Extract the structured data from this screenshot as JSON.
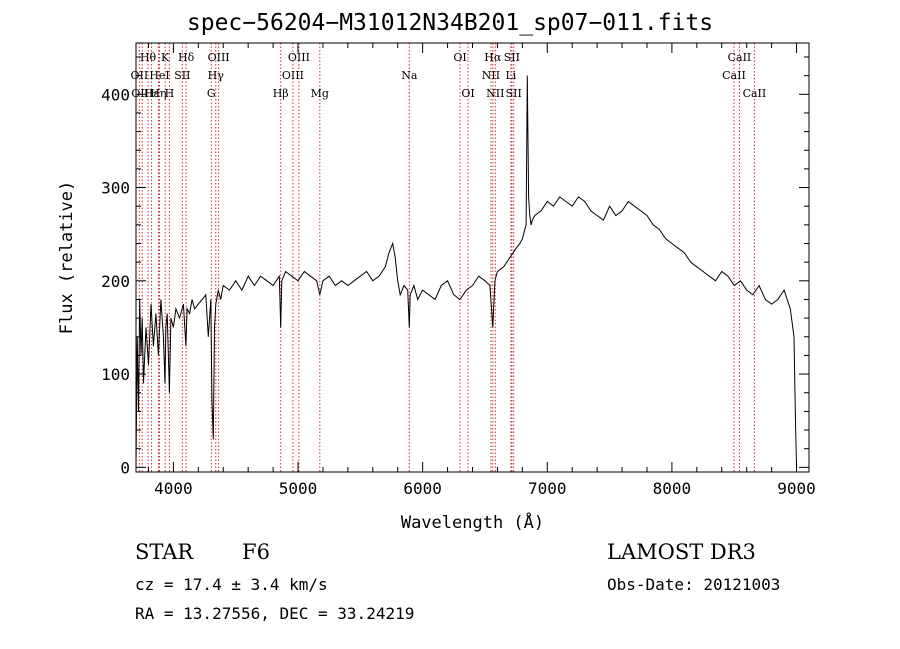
{
  "chart_data": {
    "type": "line",
    "title": "spec−56204−M31012N34B201_sp07−011.fits",
    "xlabel": "Wavelength (Å)",
    "ylabel": "Flux (relative)",
    "xlim": [
      3700,
      9100
    ],
    "ylim": [
      -5,
      455
    ],
    "xticks": [
      4000,
      5000,
      6000,
      7000,
      8000,
      9000
    ],
    "yticks": [
      0,
      100,
      200,
      300,
      400
    ],
    "series": [
      {
        "name": "spectrum",
        "x": [
          3700,
          3710,
          3720,
          3730,
          3740,
          3750,
          3760,
          3780,
          3800,
          3820,
          3840,
          3860,
          3880,
          3900,
          3920,
          3933,
          3940,
          3950,
          3968,
          3980,
          4000,
          4020,
          4050,
          4080,
          4100,
          4110,
          4130,
          4150,
          4170,
          4200,
          4230,
          4260,
          4280,
          4300,
          4310,
          4320,
          4330,
          4340,
          4360,
          4380,
          4400,
          4450,
          4500,
          4550,
          4600,
          4650,
          4700,
          4750,
          4800,
          4850,
          4861,
          4870,
          4900,
          4950,
          5000,
          5050,
          5100,
          5150,
          5175,
          5200,
          5250,
          5300,
          5350,
          5400,
          5450,
          5500,
          5550,
          5600,
          5650,
          5700,
          5730,
          5760,
          5780,
          5800,
          5820,
          5850,
          5880,
          5893,
          5900,
          5930,
          5960,
          6000,
          6050,
          6100,
          6150,
          6200,
          6250,
          6300,
          6350,
          6400,
          6450,
          6500,
          6540,
          6563,
          6580,
          6600,
          6650,
          6700,
          6750,
          6780,
          6800,
          6820,
          6830,
          6840,
          6850,
          6860,
          6870,
          6880,
          6900,
          6950,
          7000,
          7050,
          7100,
          7150,
          7200,
          7250,
          7300,
          7350,
          7400,
          7450,
          7500,
          7550,
          7600,
          7650,
          7700,
          7750,
          7800,
          7850,
          7900,
          7950,
          8000,
          8050,
          8100,
          8150,
          8200,
          8250,
          8300,
          8350,
          8400,
          8450,
          8500,
          8550,
          8600,
          8650,
          8700,
          8750,
          8800,
          8850,
          8900,
          8950,
          8980,
          8990,
          9000
        ],
        "y": [
          0,
          140,
          60,
          180,
          120,
          160,
          90,
          150,
          110,
          175,
          130,
          165,
          120,
          180,
          140,
          90,
          150,
          165,
          80,
          160,
          150,
          170,
          160,
          175,
          130,
          170,
          165,
          180,
          170,
          175,
          180,
          185,
          140,
          180,
          70,
          30,
          150,
          175,
          190,
          180,
          195,
          190,
          200,
          190,
          205,
          195,
          205,
          200,
          195,
          205,
          150,
          200,
          210,
          205,
          200,
          210,
          205,
          200,
          185,
          200,
          205,
          195,
          200,
          195,
          200,
          205,
          210,
          200,
          205,
          215,
          230,
          240,
          225,
          200,
          185,
          195,
          190,
          150,
          185,
          195,
          180,
          190,
          185,
          180,
          195,
          200,
          185,
          180,
          190,
          195,
          205,
          200,
          195,
          150,
          200,
          210,
          215,
          225,
          235,
          240,
          245,
          255,
          260,
          420,
          290,
          270,
          260,
          265,
          270,
          275,
          285,
          280,
          290,
          285,
          280,
          290,
          285,
          275,
          270,
          265,
          280,
          270,
          275,
          285,
          280,
          275,
          270,
          260,
          255,
          245,
          240,
          235,
          230,
          220,
          215,
          210,
          205,
          200,
          210,
          205,
          195,
          200,
          190,
          185,
          195,
          180,
          175,
          180,
          190,
          170,
          140,
          60,
          0
        ]
      }
    ],
    "lines": [
      {
        "name": "Hθ",
        "x": 3797,
        "row": 1
      },
      {
        "name": "OII",
        "x": 3727,
        "row": 2
      },
      {
        "name": "OIII",
        "x": 3750,
        "row": 3
      },
      {
        "name": "Hε",
        "x": 3825,
        "row": 3
      },
      {
        "name": "HeI",
        "x": 3889,
        "row": 2
      },
      {
        "name": "K",
        "x": 3934,
        "row": 1
      },
      {
        "name": "Hη",
        "x": 3880,
        "row": 3
      },
      {
        "name": "SII",
        "x": 4072,
        "row": 2
      },
      {
        "name": "H",
        "x": 3968,
        "row": 3
      },
      {
        "name": "Hδ",
        "x": 4102,
        "row": 1
      },
      {
        "name": "OIII",
        "x": 4363,
        "row": 1
      },
      {
        "name": "Hγ",
        "x": 4340,
        "row": 2
      },
      {
        "name": "G",
        "x": 4304,
        "row": 3
      },
      {
        "name": "Hβ",
        "x": 4861,
        "row": 3
      },
      {
        "name": "OIII",
        "x": 5007,
        "row": 1
      },
      {
        "name": "OIII",
        "x": 4959,
        "row": 2
      },
      {
        "name": "Mg",
        "x": 5175,
        "row": 3
      },
      {
        "name": "Na",
        "x": 5893,
        "row": 2
      },
      {
        "name": "OI",
        "x": 6300,
        "row": 1
      },
      {
        "name": "OI",
        "x": 6364,
        "row": 3
      },
      {
        "name": "Hα",
        "x": 6563,
        "row": 1
      },
      {
        "name": "NII",
        "x": 6548,
        "row": 2
      },
      {
        "name": "NII",
        "x": 6583,
        "row": 3
      },
      {
        "name": "SII",
        "x": 6716,
        "row": 1
      },
      {
        "name": "Li",
        "x": 6708,
        "row": 2
      },
      {
        "name": "SII",
        "x": 6731,
        "row": 3
      },
      {
        "name": "CaII",
        "x": 8542,
        "row": 1
      },
      {
        "name": "CaII",
        "x": 8498,
        "row": 2
      },
      {
        "name": "CaII",
        "x": 8662,
        "row": 3
      }
    ]
  },
  "footer": {
    "class_label": "STAR",
    "subclass": "F6",
    "cz": "cz = 17.4 ± 3.4 km/s",
    "coords": "RA =  13.27556, DEC =  33.24219",
    "survey": "LAMOST DR3",
    "obs_date": "Obs-Date: 20121003"
  }
}
